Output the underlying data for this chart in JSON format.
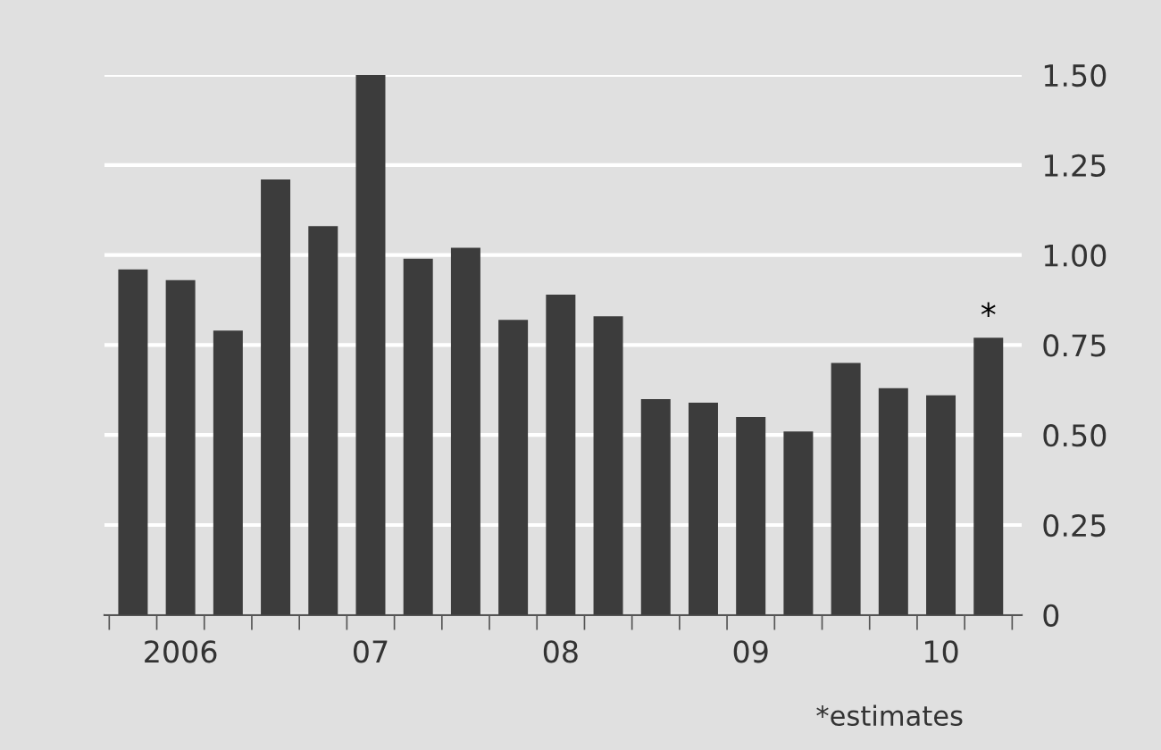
{
  "chart_data": {
    "type": "bar",
    "categories": [
      null,
      "2006",
      null,
      null,
      null,
      "07",
      null,
      null,
      null,
      "08",
      null,
      null,
      null,
      "09",
      null,
      null,
      null,
      "10",
      null
    ],
    "values": [
      0.96,
      0.93,
      0.79,
      1.21,
      1.08,
      1.5,
      0.99,
      1.02,
      0.82,
      0.89,
      0.83,
      0.6,
      0.59,
      0.55,
      0.51,
      0.7,
      0.63,
      0.61,
      0.77
    ],
    "color": "#3c3c3c",
    "ylim": [
      0,
      1.5
    ],
    "yticks": [
      0,
      0.25,
      {
        "value": 0.5,
        "label": "0.50"
      },
      0.75,
      {
        "value": 1.0,
        "label": "1.00"
      },
      1.25,
      {
        "value": 1.5,
        "label": "1.50"
      }
    ],
    "grid": "y",
    "annotations": [
      {
        "text": "*",
        "y": 0.77
      },
      "*estimates"
    ]
  }
}
